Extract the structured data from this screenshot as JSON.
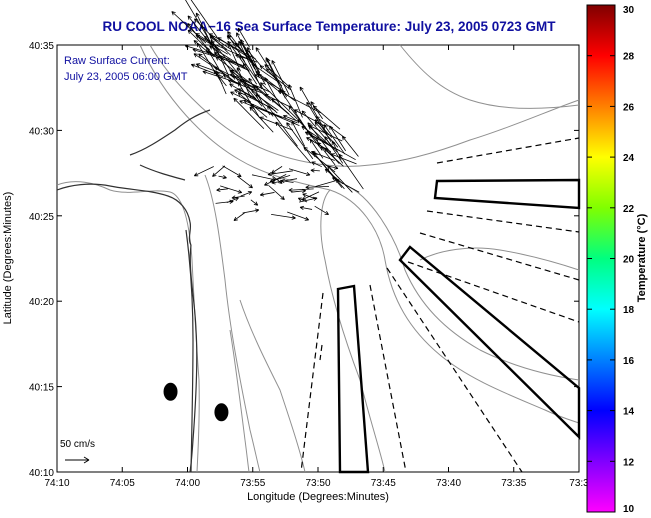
{
  "chart_data": {
    "type": "map",
    "title": "RU COOL  NOAA−16  Sea Surface Temperature:  July 23, 2005 0723 GMT",
    "annotation_lines": [
      "Raw Surface Current:",
      "July 23, 2005 06:00 GMT"
    ],
    "xlabel": "Longitude (Degrees:Minutes)",
    "ylabel": "Latitude (Degrees:Minutes)",
    "x_ticks": [
      "74:10",
      "74:05",
      "74:00",
      "73:55",
      "73:50",
      "73:45",
      "73:40",
      "73:35",
      "73:3"
    ],
    "y_ticks": [
      "40:10",
      "40:15",
      "40:20",
      "40:25",
      "40:30",
      "40:35"
    ],
    "xlim_minutes_west": [
      70,
      30
    ],
    "ylim_minutes_north": [
      10,
      35
    ],
    "colorbar": {
      "label": "Temperature (°C)",
      "range": [
        10,
        30
      ],
      "ticks": [
        "10",
        "12",
        "14",
        "16",
        "18",
        "20",
        "22",
        "24",
        "26",
        "28",
        "30"
      ],
      "colors": [
        "#ff00ff",
        "#8000ff",
        "#0000ff",
        "#0080ff",
        "#00ffff",
        "#00ff80",
        "#80ff00",
        "#ffff00",
        "#ff8000",
        "#ff0000",
        "#800000"
      ]
    },
    "scale_vector_label": "50 cm/s",
    "markers": [
      {
        "name": "",
        "lon_min_w": 61.3,
        "lat_min_n": 14.7
      },
      {
        "name": "",
        "lon_min_w": 57.4,
        "lat_min_n": 13.5
      }
    ],
    "grid": false
  }
}
